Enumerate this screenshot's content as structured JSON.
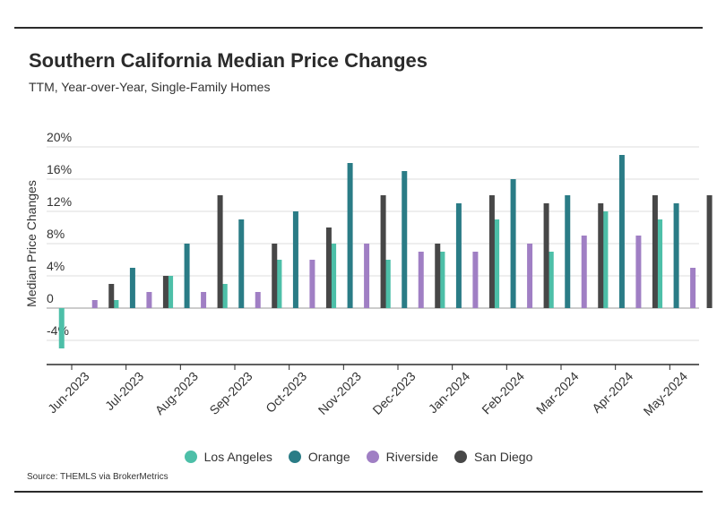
{
  "chart_data": {
    "type": "bar",
    "title": "Southern California Median Price Changes",
    "subtitle": "TTM, Year-over-Year, Single-Family Homes",
    "ylabel": "Median Price Changes",
    "xlabel": "",
    "source": "Source:  THEMLS via BrokerMetrics",
    "categories": [
      "Jun-2023",
      "Jul-2023",
      "Aug-2023",
      "Sep-2023",
      "Oct-2023",
      "Nov-2023",
      "Dec-2023",
      "Jan-2024",
      "Feb-2024",
      "Mar-2024",
      "Apr-2024",
      "May-2024"
    ],
    "y_ticks": [
      "-4%",
      "0",
      "4%",
      "8%",
      "12%",
      "16%",
      "20%"
    ],
    "y_tick_values": [
      -4,
      0,
      4,
      8,
      12,
      16,
      20
    ],
    "ylim": [
      -7,
      20
    ],
    "grid": true,
    "legend_position": "bottom",
    "series": [
      {
        "name": "Los Angeles",
        "color": "#4dbfa8",
        "values": [
          -5,
          1,
          4,
          3,
          6,
          8,
          6,
          7,
          11,
          7,
          12,
          11
        ]
      },
      {
        "name": "Orange",
        "color": "#2a7c86",
        "values": [
          0,
          5,
          8,
          11,
          12,
          18,
          17,
          13,
          16,
          14,
          19,
          13
        ]
      },
      {
        "name": "Riverside",
        "color": "#a07fc4",
        "values": [
          1,
          2,
          2,
          2,
          6,
          8,
          7,
          7,
          8,
          9,
          9,
          5
        ]
      },
      {
        "name": "San Diego",
        "color": "#474747",
        "values": [
          3,
          4,
          14,
          8,
          10,
          14,
          8,
          14,
          13,
          13,
          14,
          14
        ]
      }
    ]
  }
}
